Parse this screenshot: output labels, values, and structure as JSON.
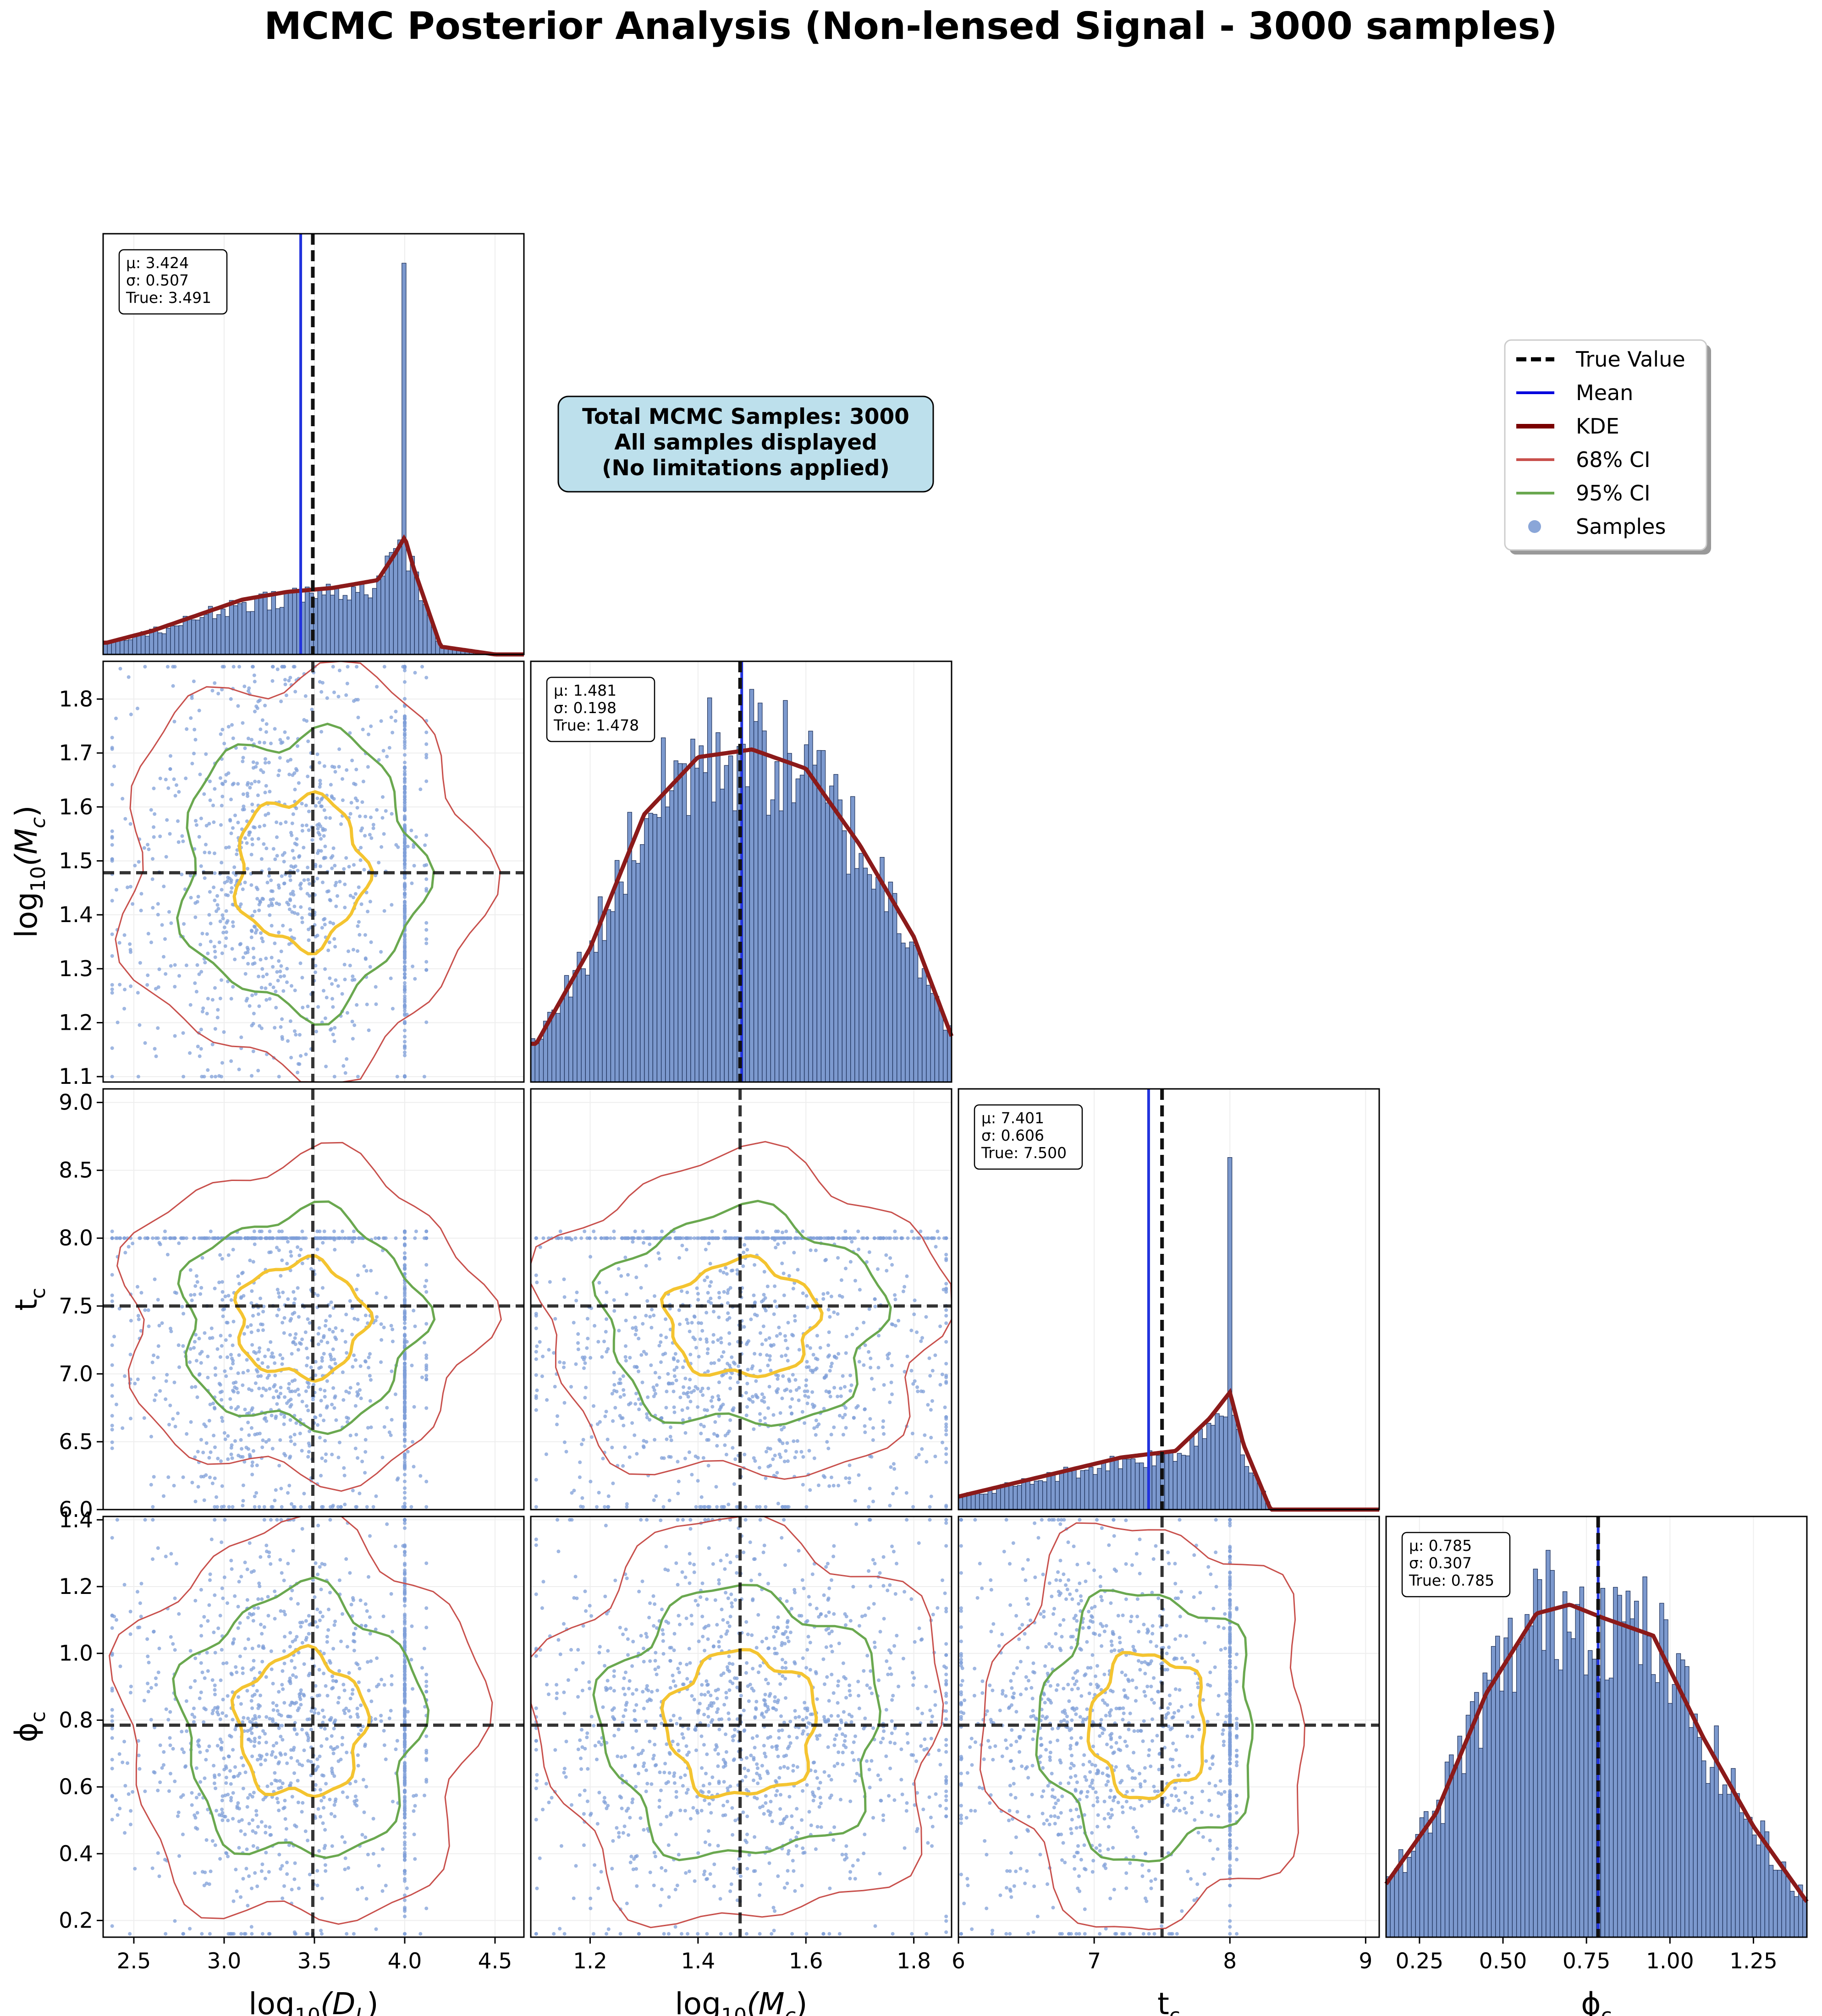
{
  "title": "MCMC Posterior Analysis (Non-lensed Signal - 3000 samples)",
  "info_box": {
    "lines": [
      "Total MCMC Samples: 3000",
      "All samples displayed",
      "(No limitations applied)"
    ],
    "fill": "#bde0ec"
  },
  "legend": {
    "position": "top-right",
    "items": [
      {
        "label": "True Value",
        "kind": "dashed",
        "color": "#000000"
      },
      {
        "label": "Mean",
        "kind": "line",
        "color": "#0000dd"
      },
      {
        "label": "KDE",
        "kind": "thick",
        "color": "#7a0000"
      },
      {
        "label": "68% CI",
        "kind": "line",
        "color": "#c8504c"
      },
      {
        "label": "95% CI",
        "kind": "line",
        "color": "#6aa84f"
      },
      {
        "label": "Samples",
        "kind": "dot",
        "color": "#8aa6d8"
      }
    ]
  },
  "colors": {
    "hist": "#5b7fc2",
    "kde": "#8b1a1a",
    "mean": "#2233dd",
    "truth": "#111111",
    "ci68": "#c8504c",
    "ci95": "#6aa84f",
    "inner": "#f4c430",
    "samples": "#7f9fd8",
    "grid": "#eeeeee"
  },
  "chart_data": {
    "type": "corner",
    "n_samples": 3000,
    "params": [
      {
        "key": "dl",
        "label": "log",
        "sub": "10",
        "arg": "(D",
        "argsub": "L",
        "argend": ")",
        "range": [
          2.33,
          4.66
        ],
        "ticks": [
          2.5,
          3.0,
          3.5,
          4.0,
          4.5
        ],
        "tick_labels": [
          "2.5",
          "3.0",
          "3.5",
          "4.0",
          "4.5"
        ],
        "mu": 3.424,
        "sigma": 0.507,
        "truth": 3.491,
        "stats": [
          "μ: 3.424",
          "σ: 0.507",
          "True: 3.491"
        ]
      },
      {
        "key": "mc",
        "label": "log",
        "sub": "10",
        "arg": "(M",
        "argsub": "c",
        "argend": ")",
        "range": [
          1.09,
          1.87
        ],
        "ticks": [
          1.1,
          1.2,
          1.3,
          1.4,
          1.5,
          1.6,
          1.7,
          1.8
        ],
        "tick_labels": [
          "1.1",
          "1.2",
          "1.3",
          "1.4",
          "1.5",
          "1.6",
          "1.7",
          "1.8"
        ],
        "xticks": [
          1.2,
          1.4,
          1.6,
          1.8
        ],
        "xtick_labels": [
          "1.2",
          "1.4",
          "1.6",
          "1.8"
        ],
        "mu": 1.481,
        "sigma": 0.198,
        "truth": 1.478,
        "stats": [
          "μ: 1.481",
          "σ: 0.198",
          "True: 1.478"
        ]
      },
      {
        "key": "tc",
        "label": "t",
        "sub": "c",
        "range": [
          6.0,
          9.1
        ],
        "ticks": [
          6.0,
          6.5,
          7.0,
          7.5,
          8.0,
          8.5,
          9.0
        ],
        "tick_labels": [
          "6.0",
          "6.5",
          "7.0",
          "7.5",
          "8.0",
          "8.5",
          "9.0"
        ],
        "xticks": [
          6,
          7,
          8,
          9
        ],
        "xtick_labels": [
          "6",
          "7",
          "8",
          "9"
        ],
        "mu": 7.401,
        "sigma": 0.606,
        "truth": 7.5,
        "stats": [
          "μ: 7.401",
          "σ: 0.606",
          "True: 7.500"
        ]
      },
      {
        "key": "phi",
        "label": "ϕ",
        "sub": "c",
        "range": [
          0.15,
          1.41
        ],
        "ticks": [
          0.2,
          0.4,
          0.6,
          0.8,
          1.0,
          1.2,
          1.4
        ],
        "tick_labels": [
          "0.2",
          "0.4",
          "0.6",
          "0.8",
          "1.0",
          "1.2",
          "1.4"
        ],
        "xticks": [
          0.25,
          0.5,
          0.75,
          1.0,
          1.25
        ],
        "xtick_labels": [
          "0.25",
          "0.50",
          "0.75",
          "1.00",
          "1.25"
        ],
        "mu": 0.785,
        "sigma": 0.307,
        "truth": 0.785,
        "stats": [
          "μ: 0.785",
          "σ: 0.307",
          "True: 0.785"
        ]
      }
    ],
    "marginals": {
      "dl": {
        "x": [
          2.35,
          2.6,
          2.85,
          3.1,
          3.35,
          3.6,
          3.85,
          3.95,
          4.0,
          4.05,
          4.2,
          4.5
        ],
        "density": [
          0.03,
          0.06,
          0.1,
          0.14,
          0.16,
          0.17,
          0.19,
          0.26,
          0.3,
          0.22,
          0.02,
          0.0
        ],
        "spike": {
          "x": 4.0,
          "height": 1.0
        }
      },
      "mc": {
        "x": [
          1.1,
          1.2,
          1.3,
          1.4,
          1.5,
          1.6,
          1.7,
          1.8,
          1.87
        ],
        "density": [
          0.1,
          0.35,
          0.7,
          0.85,
          0.87,
          0.82,
          0.62,
          0.38,
          0.12
        ]
      },
      "tc": {
        "x": [
          6.0,
          6.4,
          6.8,
          7.2,
          7.6,
          7.85,
          8.0,
          8.1,
          8.3,
          9.1
        ],
        "density": [
          0.02,
          0.04,
          0.06,
          0.08,
          0.09,
          0.14,
          0.18,
          0.1,
          0.0,
          0.0
        ],
        "spike": {
          "x": 8.0,
          "height": 0.9
        }
      },
      "phi": {
        "x": [
          0.15,
          0.3,
          0.45,
          0.6,
          0.7,
          0.8,
          0.95,
          1.1,
          1.25,
          1.41
        ],
        "density": [
          0.12,
          0.28,
          0.55,
          0.73,
          0.75,
          0.72,
          0.68,
          0.45,
          0.25,
          0.08
        ]
      }
    }
  }
}
